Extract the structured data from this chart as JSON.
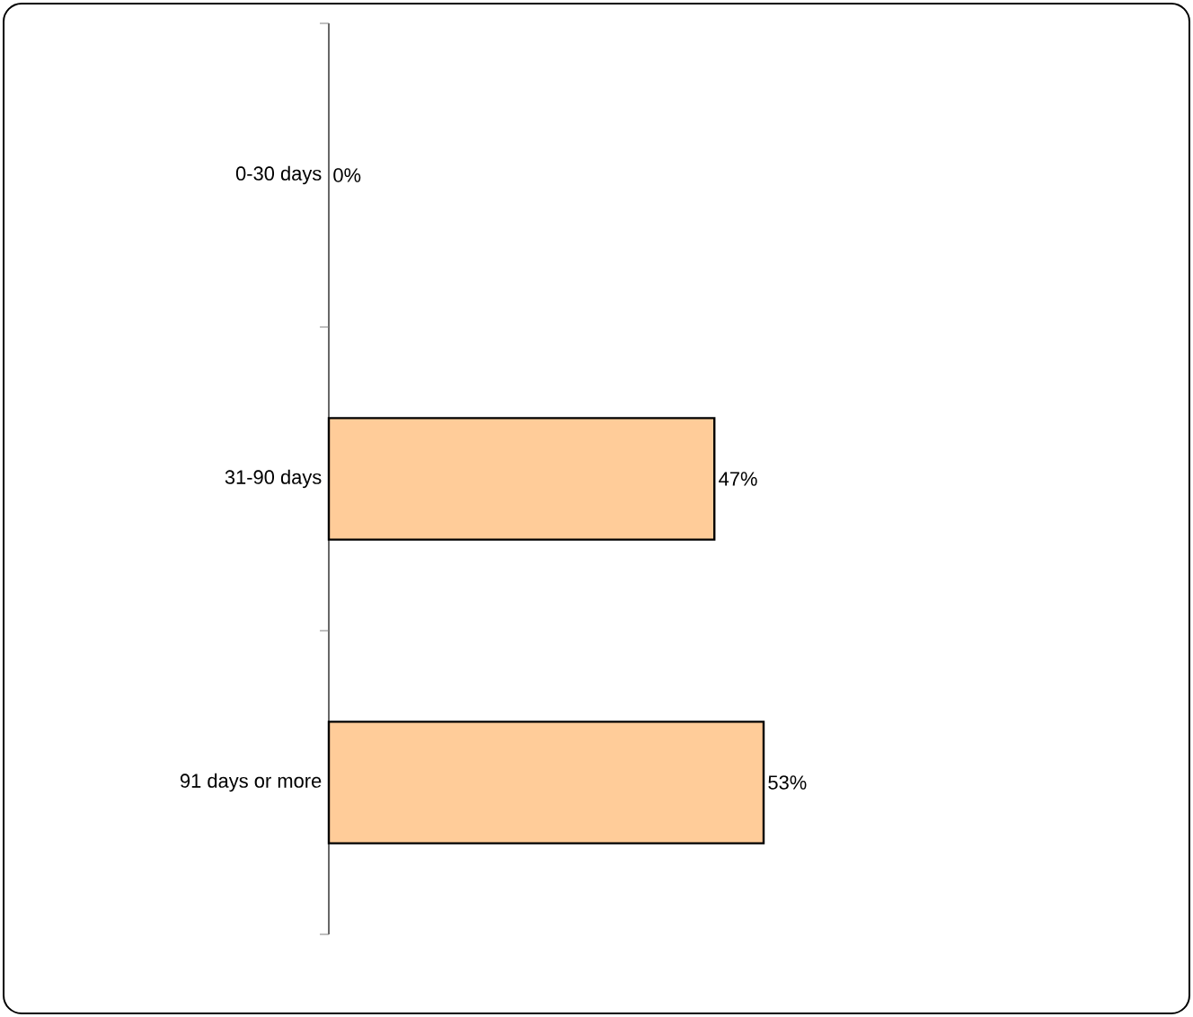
{
  "chart_data": {
    "type": "bar",
    "orientation": "horizontal",
    "categories": [
      "0-30 days",
      "31-90 days",
      "91 days or more"
    ],
    "values": [
      0,
      47,
      53
    ],
    "value_labels": [
      "0%",
      "47%",
      "53%"
    ],
    "color": "#ffcc99"
  }
}
